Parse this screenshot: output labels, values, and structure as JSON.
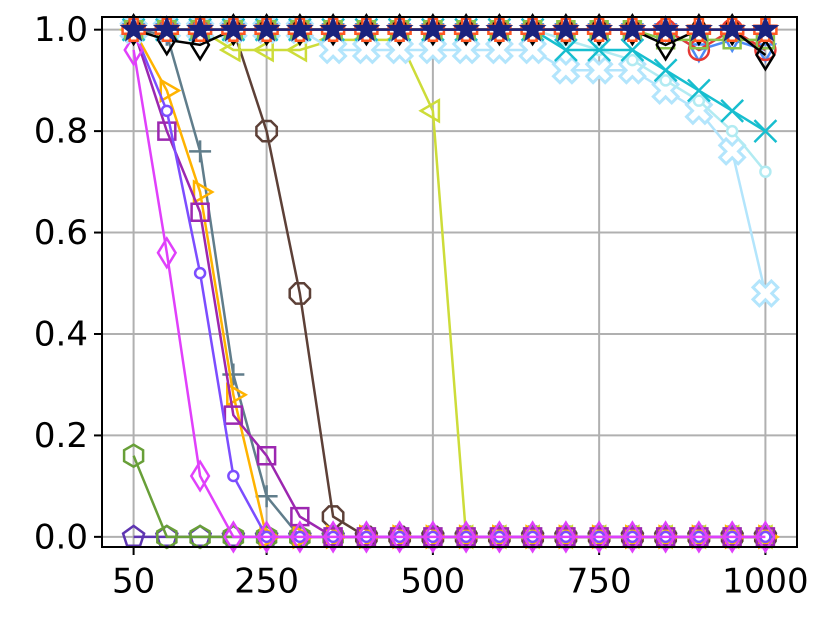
{
  "chart_data": {
    "type": "line",
    "x": [
      50,
      100,
      150,
      200,
      250,
      300,
      350,
      400,
      450,
      500,
      550,
      600,
      650,
      700,
      750,
      800,
      850,
      900,
      950,
      1000
    ],
    "xlim": [
      2.5,
      1047.5
    ],
    "xticks": [
      50,
      250,
      500,
      750,
      1000
    ],
    "ylim": [
      -0.02,
      1.025
    ],
    "yticks": [
      {
        "value": 0,
        "label": "0.0"
      },
      {
        "value": 0.2,
        "label": "0.2"
      },
      {
        "value": 0.4,
        "label": "0.4"
      },
      {
        "value": 0.6,
        "label": "0.6"
      },
      {
        "value": 0.8,
        "label": "0.8"
      },
      {
        "value": 1,
        "label": "1.0"
      }
    ],
    "grid": true,
    "series": [
      {
        "color": "#5e35b1",
        "marker": "pentagon",
        "values": [
          0,
          0,
          0,
          0,
          0,
          0,
          0,
          0,
          0,
          0,
          0,
          0,
          0,
          0,
          0,
          0,
          0,
          0,
          0,
          0
        ]
      },
      {
        "color": "#689f38",
        "marker": "hexagon",
        "values": [
          0.16,
          0,
          0,
          0,
          0,
          0,
          0,
          0,
          0,
          0,
          0,
          0,
          0,
          0,
          0,
          0,
          0,
          0,
          0,
          0
        ]
      },
      {
        "color": "#5d4037",
        "marker": "octagon",
        "values": [
          1,
          1,
          1,
          1,
          0.8,
          0.48,
          0.04,
          0,
          0,
          0,
          0,
          0,
          0,
          0,
          0,
          0,
          0,
          0,
          0,
          0
        ]
      },
      {
        "color": "#cddc39",
        "marker": "triangle-left",
        "values": [
          1,
          1,
          1,
          0.96,
          0.96,
          0.96,
          0.98,
          0.98,
          0.98,
          0.84,
          0,
          0,
          0,
          0,
          0,
          0,
          0,
          0,
          0,
          0
        ]
      },
      {
        "color": "#607d8b",
        "marker": "plus",
        "values": [
          1,
          0.99,
          0.76,
          0.32,
          0.08,
          0,
          0,
          0,
          0,
          0,
          0,
          0,
          0,
          0,
          0,
          0,
          0,
          0,
          0,
          0
        ]
      },
      {
        "color": "#ffb300",
        "marker": "triangle-right",
        "values": [
          1,
          0.88,
          0.68,
          0.28,
          0,
          0,
          0,
          0,
          0,
          0,
          0,
          0,
          0,
          0,
          0,
          0,
          0,
          0,
          0,
          0
        ]
      },
      {
        "color": "#9c27b0",
        "marker": "square",
        "values": [
          1,
          0.8,
          0.64,
          0.24,
          0.16,
          0.04,
          0,
          0,
          0,
          0,
          0,
          0,
          0,
          0,
          0,
          0,
          0,
          0,
          0,
          0
        ]
      },
      {
        "color": "#7c4dff",
        "marker": "small-circle",
        "values": [
          1,
          0.84,
          0.52,
          0.12,
          0,
          0,
          0,
          0,
          0,
          0,
          0,
          0,
          0,
          0,
          0,
          0,
          0,
          0,
          0,
          0
        ]
      },
      {
        "color": "#e040fb",
        "marker": "diamond",
        "values": [
          0.96,
          0.56,
          0.12,
          0,
          0,
          0,
          0,
          0,
          0,
          0,
          0,
          0,
          0,
          0,
          0,
          0,
          0,
          0,
          0,
          0
        ]
      },
      {
        "color": "#b3e5fc",
        "marker": "x-filled",
        "values": [
          1,
          1,
          1,
          1,
          1,
          1,
          0.96,
          0.96,
          0.96,
          0.96,
          0.96,
          0.96,
          0.96,
          0.92,
          0.92,
          0.92,
          0.88,
          0.84,
          0.76,
          0.48
        ]
      },
      {
        "color": "#b2ebf2",
        "marker": "small-circle",
        "values": [
          1,
          1,
          1,
          1,
          1,
          1,
          1,
          1,
          1,
          1,
          1,
          1,
          1,
          0.98,
          0.96,
          0.94,
          0.9,
          0.86,
          0.8,
          0.72
        ]
      },
      {
        "color": "#17becf",
        "marker": "x",
        "values": [
          1,
          1,
          1,
          1,
          1,
          1,
          1,
          1,
          1,
          1,
          1,
          1,
          1,
          0.96,
          0.96,
          0.96,
          0.92,
          0.88,
          0.84,
          0.8
        ]
      },
      {
        "color": "#4c8bf5",
        "marker": "triangle-down",
        "values": [
          1,
          1,
          1,
          1,
          1,
          1,
          1,
          1,
          1,
          1,
          1,
          1,
          1,
          1,
          1,
          1,
          1,
          0.96,
          0.98,
          0.96
        ]
      },
      {
        "color": "#e53935",
        "marker": "circle",
        "values": [
          1,
          1,
          1,
          1,
          1,
          1,
          1,
          1,
          1,
          1,
          1,
          1,
          1,
          1,
          1,
          1,
          1,
          0.96,
          1,
          0.96
        ]
      },
      {
        "color": "#8bc34a",
        "marker": "square",
        "values": [
          1,
          1,
          1,
          1,
          1,
          1,
          1,
          1,
          1,
          1,
          1,
          1,
          1,
          1,
          1,
          1,
          0.98,
          0.98,
          0.98,
          0.98
        ]
      },
      {
        "color": "#000000",
        "marker": "diamond",
        "values": [
          1,
          0.98,
          0.97,
          1,
          1,
          1,
          1,
          1,
          1,
          1,
          1,
          1,
          1,
          1,
          1,
          1,
          0.97,
          1,
          1,
          0.95
        ]
      },
      {
        "color": "#ff5722",
        "marker": "plus-filled",
        "values": [
          1,
          1,
          1,
          1,
          1,
          1,
          1,
          1,
          1,
          1,
          1,
          1,
          1,
          1,
          1,
          1,
          1,
          1,
          1,
          1
        ]
      },
      {
        "color": "#1a237e",
        "marker": "star",
        "values": [
          1,
          1,
          1,
          1,
          1,
          1,
          1,
          1,
          1,
          1,
          1,
          1,
          1,
          1,
          1,
          1,
          1,
          1,
          1,
          1
        ]
      }
    ]
  }
}
